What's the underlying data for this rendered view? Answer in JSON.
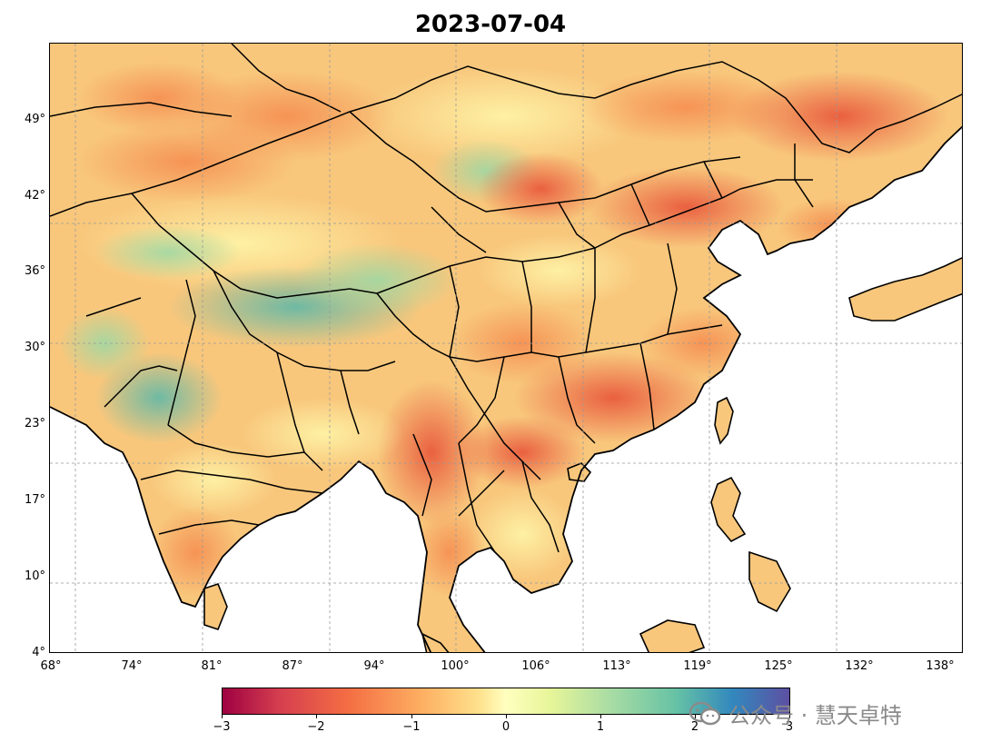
{
  "title": "2023-07-04",
  "y_ticks": [
    "49°",
    "42°",
    "36°",
    "30°",
    "23°",
    "17°",
    "10°",
    "4°"
  ],
  "x_ticks": [
    "68°",
    "74°",
    "81°",
    "87°",
    "94°",
    "100°",
    "106°",
    "113°",
    "119°",
    "125°",
    "132°",
    "138°"
  ],
  "colorbar": {
    "min": -3,
    "max": 3,
    "ticks": [
      "−3",
      "−2",
      "−1",
      "0",
      "1",
      "2",
      "3"
    ],
    "colormap": "Spectral"
  },
  "watermark": {
    "text": "公众号 · 慧天卓特"
  },
  "colors": {
    "land_base": "#f9c77a",
    "ocean": "#ffffff",
    "border": "#000000"
  }
}
